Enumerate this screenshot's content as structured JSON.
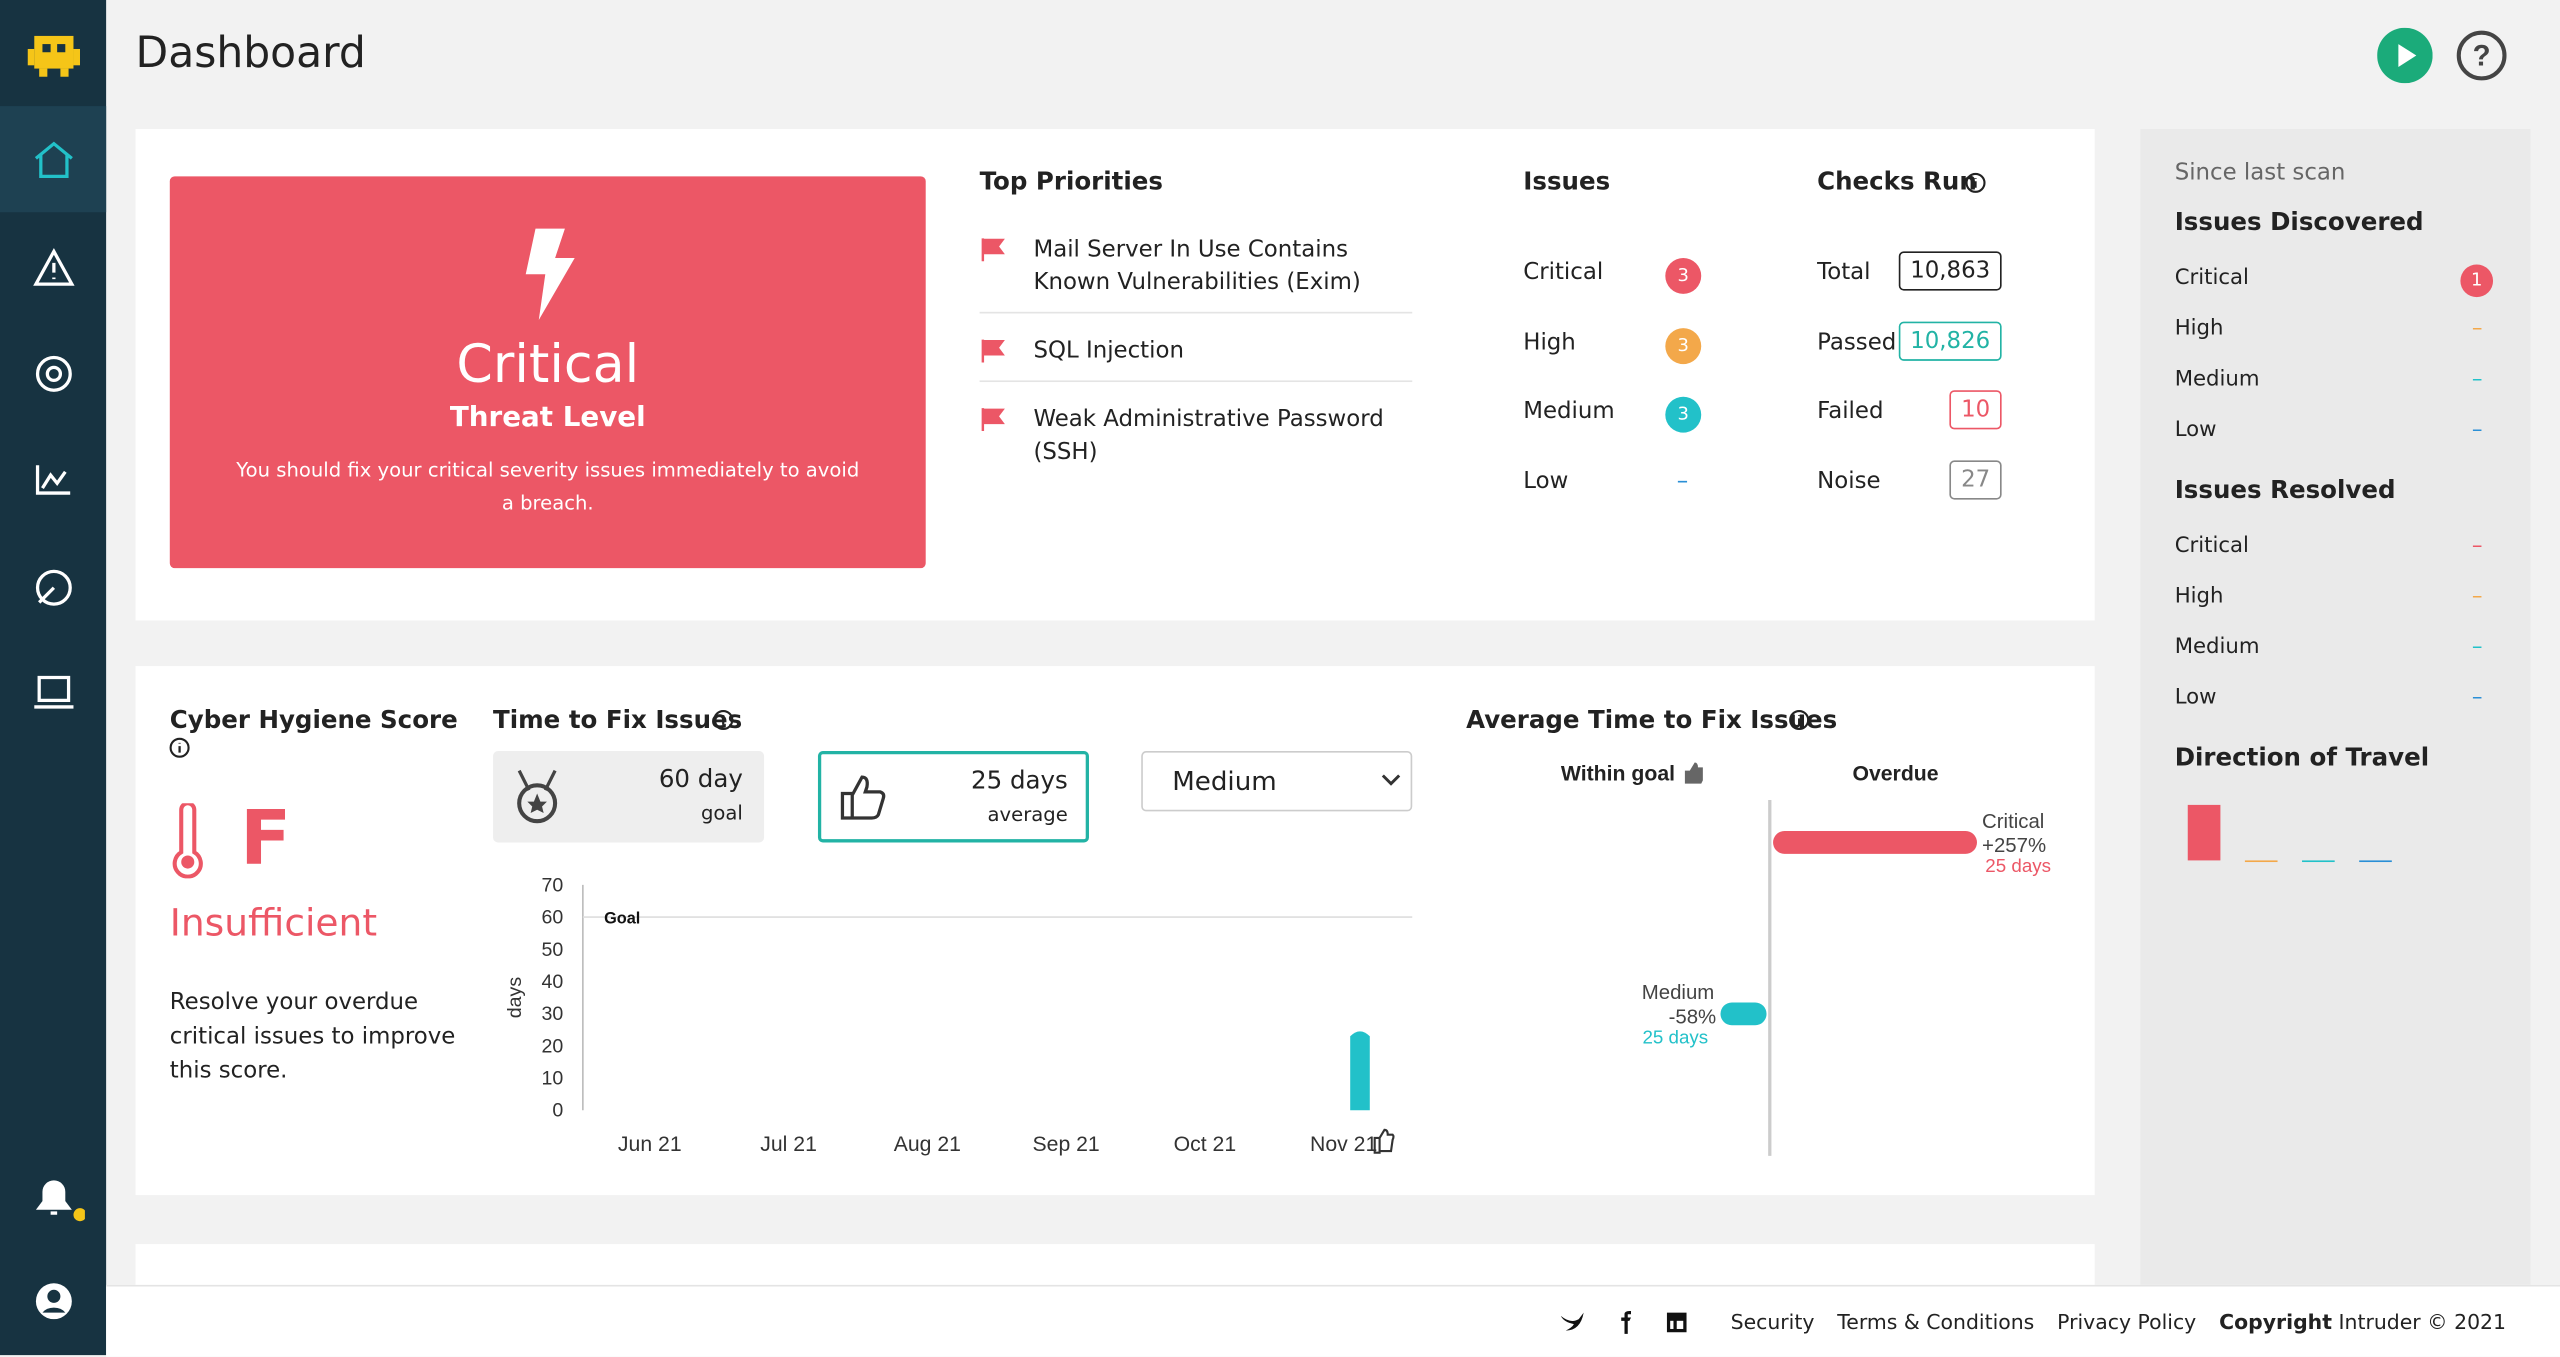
{
  "header": {
    "title": "Dashboard"
  },
  "threat": {
    "level": "Critical",
    "label": "Threat Level",
    "message": "You should fix your critical severity issues immediately to avoid a breach."
  },
  "top_priorities": {
    "title": "Top Priorities",
    "items": [
      "Mail Server In Use Contains Known Vulnerabilities (Exim)",
      "SQL Injection",
      "Weak Administrative Password (SSH)"
    ]
  },
  "issues": {
    "title": "Issues",
    "rows": [
      {
        "label": "Critical",
        "count": 3,
        "color": "#ec5766"
      },
      {
        "label": "High",
        "count": 3,
        "color": "#f3a84a"
      },
      {
        "label": "Medium",
        "count": 3,
        "color": "#22c1c9"
      },
      {
        "label": "Low",
        "count": "–",
        "color": "#2a8fd6"
      }
    ]
  },
  "checks_run": {
    "title": "Checks Run",
    "rows": [
      {
        "label": "Total",
        "value": "10,863",
        "color": "#222222"
      },
      {
        "label": "Passed",
        "value": "10,826",
        "color": "#22b3a5"
      },
      {
        "label": "Failed",
        "value": "10",
        "color": "#ec5766"
      },
      {
        "label": "Noise",
        "value": "27",
        "color": "#888888"
      }
    ]
  },
  "since_last_scan": {
    "caption": "Since last scan",
    "discovered": {
      "title": "Issues Discovered",
      "rows": [
        {
          "label": "Critical",
          "value": 1,
          "color": "#ec5766"
        },
        {
          "label": "High",
          "value": "–",
          "color": "#f3a84a"
        },
        {
          "label": "Medium",
          "value": "–",
          "color": "#22c1c9"
        },
        {
          "label": "Low",
          "value": "–",
          "color": "#2a8fd6"
        }
      ]
    },
    "resolved": {
      "title": "Issues Resolved",
      "rows": [
        {
          "label": "Critical",
          "value": "–",
          "color": "#ec5766"
        },
        {
          "label": "High",
          "value": "–",
          "color": "#f3a84a"
        },
        {
          "label": "Medium",
          "value": "–",
          "color": "#22c1c9"
        },
        {
          "label": "Low",
          "value": "–",
          "color": "#2a8fd6"
        }
      ]
    },
    "direction": {
      "title": "Direction of Travel",
      "values": [
        1,
        0,
        0,
        0
      ],
      "colors": [
        "#ec5766",
        "#f3a84a",
        "#22c1c9",
        "#2a8fd6"
      ]
    }
  },
  "hygiene": {
    "title": "Cyber Hygiene Score",
    "grade": "F",
    "status": "Insufficient",
    "message": "Resolve your overdue critical issues to improve this score."
  },
  "time_to_fix": {
    "title": "Time to Fix Issues",
    "goal_value": "60 day",
    "goal_label": "goal",
    "average_value": "25 days",
    "average_label": "average",
    "filter": "Medium",
    "chart": {
      "type": "bar",
      "y_label": "days",
      "categories": [
        "Jun 21",
        "Jul 21",
        "Aug 21",
        "Sep 21",
        "Oct 21",
        "Nov 21"
      ],
      "values": [
        null,
        null,
        null,
        null,
        null,
        25
      ],
      "ylim": [
        0,
        70
      ],
      "yticks": [
        0,
        10,
        20,
        30,
        40,
        50,
        60,
        70
      ],
      "goal": 60,
      "goal_label": "Goal",
      "color": "#22c1c9"
    }
  },
  "avg_time": {
    "title": "Average Time to Fix Issues",
    "within_goal": "Within goal",
    "overdue": "Overdue",
    "rows": [
      {
        "name": "Critical",
        "change": "+257%",
        "days": "25 days",
        "value": 257,
        "color": "#ec5766"
      },
      {
        "name": "Medium",
        "change": "-58%",
        "days": "25 days",
        "value": -58,
        "color": "#22c1c9"
      }
    ]
  },
  "footer": {
    "links": [
      "Security",
      "Terms & Conditions",
      "Privacy Policy"
    ],
    "copyright_bold": "Copyright",
    "copyright": "Intruder © 2021"
  }
}
